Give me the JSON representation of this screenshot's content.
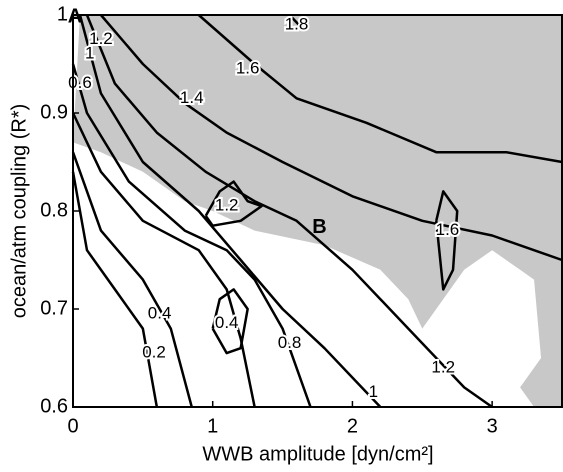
{
  "chart_data": {
    "type": "contour",
    "xlabel": "WWB amplitude [dyn/cm²]",
    "ylabel": "ocean/atm coupling (R*)",
    "xlim": [
      0,
      3.5
    ],
    "ylim": [
      0.6,
      1.0
    ],
    "xticks": [
      0,
      1,
      2,
      3
    ],
    "yticks": [
      0.6,
      0.7,
      0.8,
      0.9,
      1
    ],
    "line_color": "#000000",
    "shaded_region": {
      "color": "#c8c8c8",
      "x": [
        0,
        0.2,
        0.5,
        0.8,
        1.0,
        1.3,
        1.8,
        2.2,
        2.4,
        2.5,
        2.6,
        2.8,
        3.0,
        3.2,
        3.3,
        3.35,
        3.2,
        3.3,
        3.5,
        3.5,
        0.05
      ],
      "y": [
        0.87,
        0.86,
        0.84,
        0.81,
        0.8,
        0.78,
        0.765,
        0.74,
        0.71,
        0.68,
        0.7,
        0.74,
        0.76,
        0.74,
        0.73,
        0.65,
        0.62,
        0.6,
        0.6,
        1.0,
        1.0
      ]
    },
    "contours": [
      {
        "level": 1.8,
        "x": [
          1.55,
          1.65
        ],
        "y": [
          1.0,
          0.985
        ],
        "label_x": [
          1.6
        ],
        "label_y": [
          0.99
        ]
      },
      {
        "level": 1.6,
        "x": [
          0.9,
          1.3,
          1.6,
          2.1,
          2.6,
          3.1,
          3.5
        ],
        "y": [
          1.0,
          0.95,
          0.915,
          0.89,
          0.86,
          0.86,
          0.85
        ],
        "label_x": [
          1.25
        ],
        "label_y": [
          0.945
        ]
      },
      {
        "level": 1.6,
        "x": [
          2.6,
          2.65,
          2.75,
          2.72,
          2.65,
          2.6
        ],
        "y": [
          0.79,
          0.82,
          0.8,
          0.74,
          0.72,
          0.79
        ],
        "label_x": [
          2.68
        ],
        "label_y": [
          0.78
        ]
      },
      {
        "level": 1.4,
        "x": [
          0.2,
          0.5,
          0.8,
          1.1,
          1.5,
          2.0,
          2.5,
          3.0,
          3.5
        ],
        "y": [
          1.0,
          0.95,
          0.91,
          0.88,
          0.85,
          0.815,
          0.79,
          0.775,
          0.75
        ],
        "label_x": [
          0.85
        ],
        "label_y": [
          0.915
        ]
      },
      {
        "level": 1.2,
        "x": [
          0.1,
          0.3,
          0.6,
          0.95,
          1.3,
          1.6,
          2.0,
          2.4,
          2.8,
          3.0
        ],
        "y": [
          1.0,
          0.93,
          0.88,
          0.84,
          0.81,
          0.79,
          0.74,
          0.68,
          0.62,
          0.6
        ],
        "label_x": [
          0.2,
          2.65
        ],
        "label_y": [
          0.975,
          0.64
        ]
      },
      {
        "level": 1.2,
        "x": [
          0.95,
          1.05,
          1.15,
          1.25,
          1.35,
          1.2,
          1.0,
          0.95
        ],
        "y": [
          0.795,
          0.82,
          0.83,
          0.81,
          0.805,
          0.79,
          0.785,
          0.795
        ],
        "label_x": [
          1.1
        ],
        "label_y": [
          0.805
        ]
      },
      {
        "level": 1,
        "x": [
          0.05,
          0.2,
          0.5,
          0.9,
          1.2,
          1.5,
          1.8,
          2.2
        ],
        "y": [
          1.0,
          0.92,
          0.85,
          0.8,
          0.75,
          0.7,
          0.66,
          0.6
        ],
        "label_x": [
          0.12,
          2.15
        ],
        "label_y": [
          0.96,
          0.615
        ]
      },
      {
        "level": 0.8,
        "x": [
          0,
          0.1,
          0.4,
          0.8,
          1.1,
          1.3,
          1.5,
          1.7
        ],
        "y": [
          0.95,
          0.9,
          0.83,
          0.78,
          0.76,
          0.73,
          0.68,
          0.6
        ],
        "label_x": [
          1.55
        ],
        "label_y": [
          0.665
        ]
      },
      {
        "level": 0.6,
        "x": [
          0,
          0.2,
          0.5,
          0.9,
          1.1,
          1.2,
          1.3
        ],
        "y": [
          0.9,
          0.84,
          0.79,
          0.76,
          0.72,
          0.67,
          0.6
        ],
        "label_x": [
          0.05
        ],
        "label_y": [
          0.93
        ]
      },
      {
        "level": 0.4,
        "x": [
          1.0,
          1.05,
          1.15,
          1.25,
          1.2,
          1.1,
          1.0
        ],
        "y": [
          0.68,
          0.71,
          0.72,
          0.7,
          0.66,
          0.655,
          0.68
        ],
        "label_x": [
          1.1
        ],
        "label_y": [
          0.685
        ]
      },
      {
        "level": 0.4,
        "x": [
          0,
          0.2,
          0.5,
          0.7,
          0.85
        ],
        "y": [
          0.86,
          0.78,
          0.73,
          0.68,
          0.6
        ],
        "label_x": [
          0.62
        ],
        "label_y": [
          0.695
        ]
      },
      {
        "level": 0.2,
        "x": [
          0,
          0.1,
          0.3,
          0.5,
          0.6
        ],
        "y": [
          0.84,
          0.76,
          0.72,
          0.68,
          0.6
        ],
        "label_x": [
          0.58
        ],
        "label_y": [
          0.655
        ]
      }
    ],
    "annotations": [
      {
        "text": "A",
        "x": 0,
        "y": 1.0
      },
      {
        "text": "B",
        "x": 1.75,
        "y": 0.785
      }
    ]
  }
}
